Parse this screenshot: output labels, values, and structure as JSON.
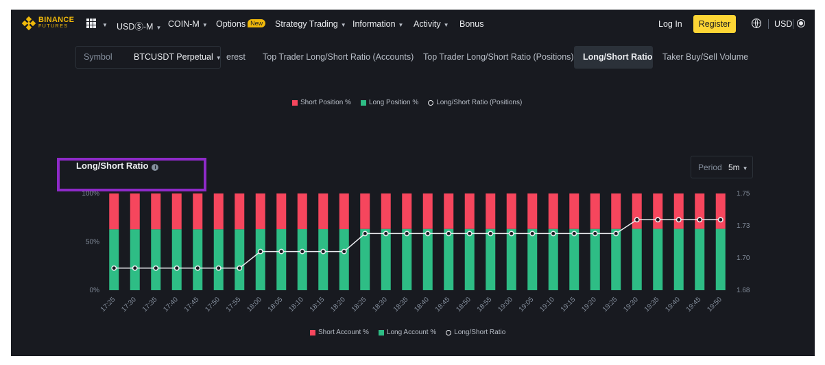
{
  "nav": {
    "logo_line1": "BINANCE",
    "logo_line2": "FUTURES",
    "usdm": "USDⓈ-M",
    "coinm": "COIN-M",
    "options": "Options",
    "options_badge": "New",
    "strategy": "Strategy Trading",
    "information": "Information",
    "activity": "Activity",
    "bonus": "Bonus",
    "login": "Log In",
    "register": "Register",
    "currency": "USD"
  },
  "toolbar": {
    "symbol_label": "Symbol",
    "symbol_value": "BTCUSDT Perpetual",
    "tabs": [
      "erest",
      "Top Trader Long/Short Ratio (Accounts)",
      "Top Trader Long/Short Ratio (Positions)",
      "Long/Short Ratio",
      "Taker Buy/Sell Volume"
    ],
    "active_tab": "Long/Short Ratio"
  },
  "upper_legend": {
    "short": "Short Position %",
    "long": "Long Position %",
    "ratio": "Long/Short Ratio (Positions)"
  },
  "panel": {
    "title": "Long/Short Ratio",
    "period_label": "Period",
    "period_value": "5m"
  },
  "lower_legend": {
    "short": "Short Account %",
    "long": "Long Account %",
    "ratio": "Long/Short Ratio"
  },
  "colors": {
    "short": "#f6465d",
    "long": "#2ebd85",
    "ratio_line": "#eaecef",
    "accent": "#f0b90b",
    "highlight": "#8e2ac8"
  },
  "chart_data": {
    "type": "bar",
    "stacked": true,
    "categories": [
      "17:25",
      "17:30",
      "17:35",
      "17:40",
      "17:45",
      "17:50",
      "17:55",
      "18:00",
      "18:05",
      "18:10",
      "18:15",
      "18:20",
      "18:25",
      "18:30",
      "18:35",
      "18:40",
      "18:45",
      "18:50",
      "18:55",
      "19:00",
      "19:05",
      "19:10",
      "19:15",
      "19:20",
      "19:25",
      "19:30",
      "19:35",
      "19:40",
      "19:45",
      "19:50"
    ],
    "left_axis_ticks": [
      "100%",
      "50%",
      "0%"
    ],
    "right_axis_ticks": [
      "1.75",
      "1.73",
      "1.70",
      "1.68"
    ],
    "left_ylim": [
      0,
      100
    ],
    "right_ylim": [
      1.68,
      1.75
    ],
    "series": [
      {
        "name": "Long Account %",
        "axis": "left",
        "values": [
          62.9,
          62.9,
          62.9,
          62.9,
          62.9,
          62.9,
          62.9,
          63.1,
          63.1,
          63.1,
          63.1,
          63.1,
          63.3,
          63.3,
          63.3,
          63.3,
          63.3,
          63.3,
          63.3,
          63.3,
          63.3,
          63.3,
          63.3,
          63.3,
          63.3,
          63.4,
          63.4,
          63.4,
          63.4,
          63.4
        ]
      },
      {
        "name": "Short Account %",
        "axis": "left",
        "values": [
          37.1,
          37.1,
          37.1,
          37.1,
          37.1,
          37.1,
          37.1,
          36.9,
          36.9,
          36.9,
          36.9,
          36.9,
          36.7,
          36.7,
          36.7,
          36.7,
          36.7,
          36.7,
          36.7,
          36.7,
          36.7,
          36.7,
          36.7,
          36.7,
          36.7,
          36.6,
          36.6,
          36.6,
          36.6,
          36.6
        ]
      },
      {
        "name": "Long/Short Ratio",
        "axis": "right",
        "type": "line",
        "values": [
          1.696,
          1.696,
          1.696,
          1.696,
          1.696,
          1.696,
          1.696,
          1.708,
          1.708,
          1.708,
          1.708,
          1.708,
          1.721,
          1.721,
          1.721,
          1.721,
          1.721,
          1.721,
          1.721,
          1.721,
          1.721,
          1.721,
          1.721,
          1.721,
          1.721,
          1.731,
          1.731,
          1.731,
          1.731,
          1.731
        ]
      }
    ],
    "legend": "bottom-center",
    "grid": false
  }
}
